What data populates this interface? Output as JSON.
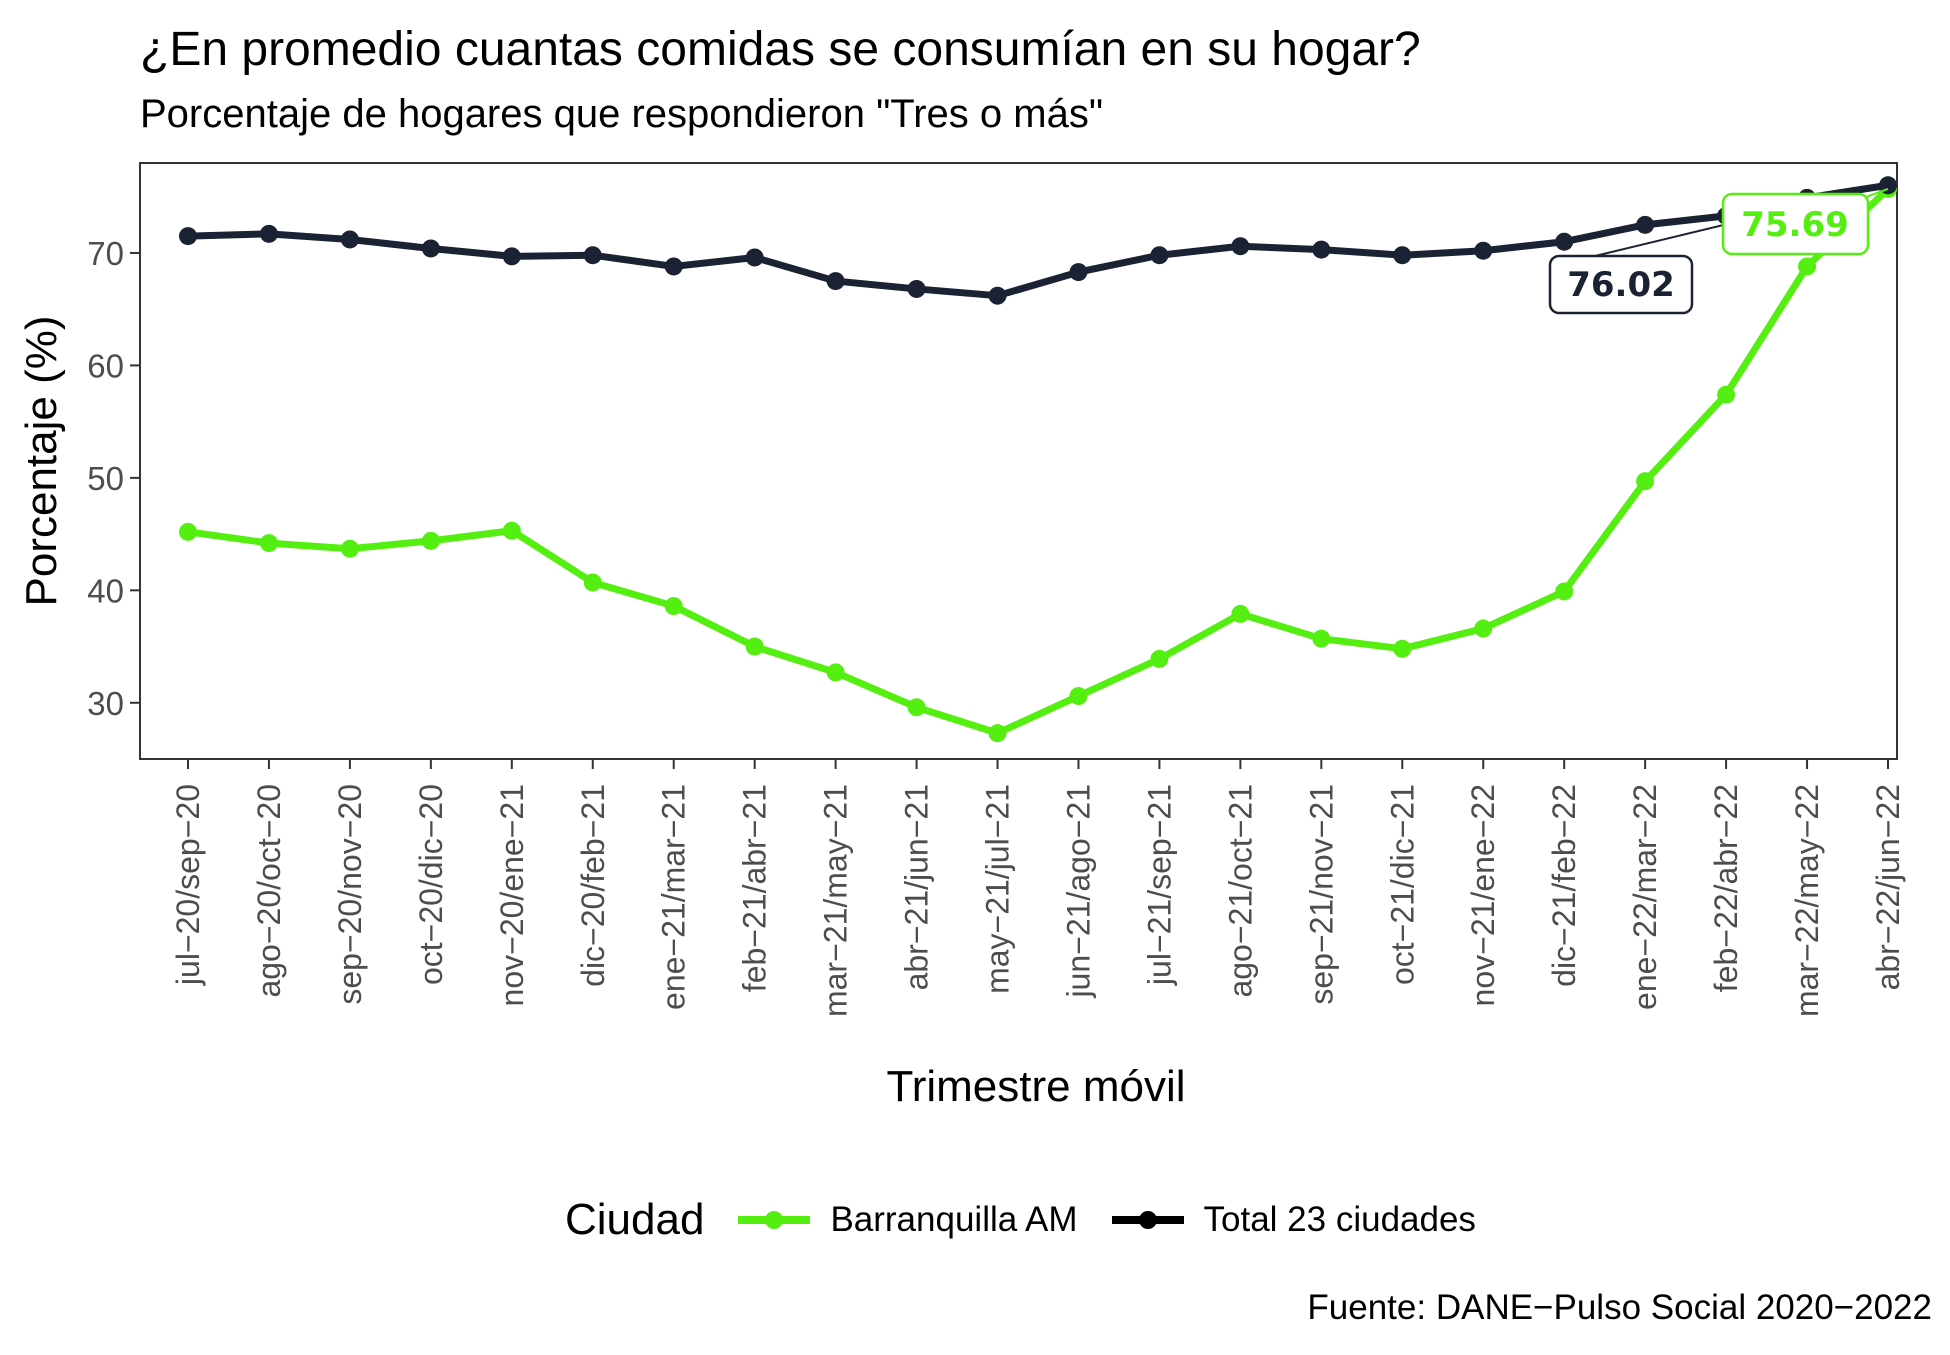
{
  "chart_data": {
    "type": "line",
    "title": "¿En promedio cuantas comidas se consumían en su hogar?",
    "subtitle": "Porcentaje de hogares que respondieron \"Tres o más\"",
    "xlabel": "Trimestre móvil",
    "ylabel": "Porcentaje (%)",
    "ylim": [
      25,
      78
    ],
    "yticks": [
      30,
      40,
      50,
      60,
      70
    ],
    "grid": false,
    "legend_position": "bottom",
    "legend_title": "Ciudad",
    "categories": [
      "jul−20/sep−20",
      "ago−20/oct−20",
      "sep−20/nov−20",
      "oct−20/dic−20",
      "nov−20/ene−21",
      "dic−20/feb−21",
      "ene−21/mar−21",
      "feb−21/abr−21",
      "mar−21/may−21",
      "abr−21/jun−21",
      "may−21/jul−21",
      "jun−21/ago−21",
      "jul−21/sep−21",
      "ago−21/oct−21",
      "sep−21/nov−21",
      "oct−21/dic−21",
      "nov−21/ene−22",
      "dic−21/feb−22",
      "ene−22/mar−22",
      "feb−22/abr−22",
      "mar−22/may−22",
      "abr−22/jun−22"
    ],
    "series": [
      {
        "name": "Barranquilla AM",
        "color": "#55EE11",
        "values": [
          45.2,
          44.2,
          43.7,
          44.4,
          45.3,
          40.7,
          38.6,
          35.0,
          32.7,
          29.6,
          27.3,
          30.6,
          33.9,
          37.9,
          35.7,
          34.8,
          36.6,
          39.9,
          49.7,
          57.4,
          68.8,
          75.69
        ],
        "label": "75.69"
      },
      {
        "name": "Total 23 ciudades",
        "color": "#1B2233",
        "values": [
          71.5,
          71.7,
          71.2,
          70.4,
          69.7,
          69.8,
          68.8,
          69.6,
          67.5,
          66.8,
          66.2,
          68.3,
          69.8,
          70.6,
          70.3,
          69.8,
          70.2,
          71.0,
          72.5,
          73.3,
          74.9,
          76.02
        ],
        "label": "76.02"
      }
    ],
    "source": "Fuente: DANE−Pulso Social 2020−2022"
  }
}
